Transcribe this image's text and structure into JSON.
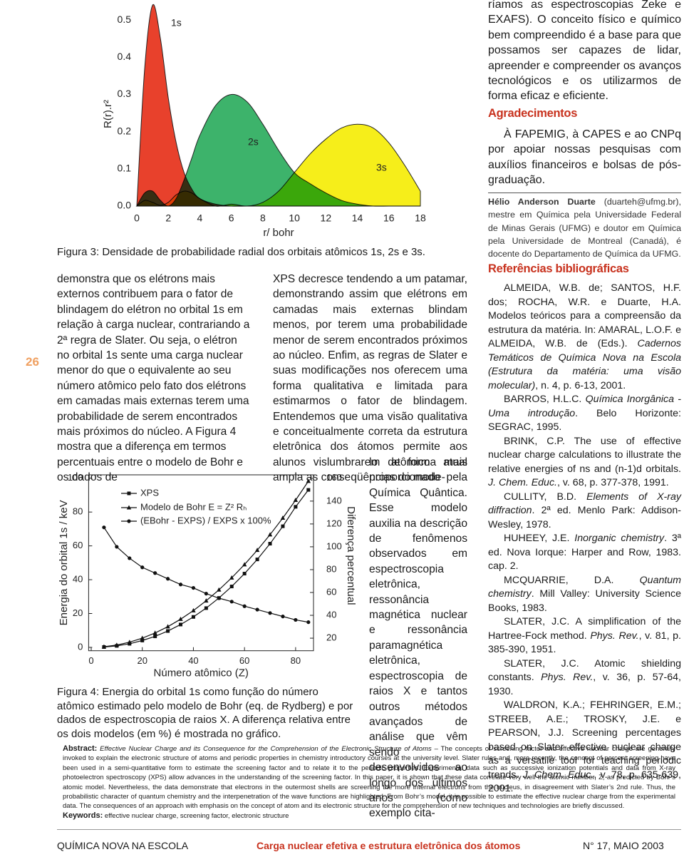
{
  "chart_data": [
    {
      "type": "area",
      "caption": "Figura 3: Densidade de probabilidade radial dos orbitais atômicos 1s, 2s e 3s.",
      "ylabel": "R(r).r²",
      "xlabel": "r/ bohr",
      "x": [
        0,
        0.5,
        1,
        1.5,
        2,
        2.5,
        3,
        3.5,
        4,
        5,
        6,
        7,
        8,
        9,
        10,
        11,
        12,
        13,
        14,
        15,
        16,
        17,
        18
      ],
      "series": [
        {
          "name": "1s",
          "color": "#e8412c",
          "values": [
            0,
            0.37,
            0.54,
            0.45,
            0.29,
            0.17,
            0.09,
            0.045,
            0.02,
            0.005,
            0,
            0,
            0,
            0,
            0,
            0,
            0,
            0,
            0,
            0,
            0,
            0,
            0
          ]
        },
        {
          "name": "2s",
          "color": "#3db36b",
          "values": [
            0,
            0.035,
            0.04,
            0.015,
            0,
            0.02,
            0.07,
            0.13,
            0.19,
            0.27,
            0.3,
            0.28,
            0.22,
            0.15,
            0.09,
            0.06,
            0.035,
            0.015,
            0.005,
            0,
            0,
            0,
            0
          ]
        },
        {
          "name": "3s",
          "color": "#f6ee1a",
          "values": [
            0,
            0.015,
            0.01,
            0.002,
            0.01,
            0.03,
            0.04,
            0.035,
            0.02,
            0,
            0.005,
            0,
            0.01,
            0.04,
            0.09,
            0.14,
            0.18,
            0.21,
            0.22,
            0.21,
            0.17,
            0.11,
            0.04
          ]
        }
      ],
      "xlim": [
        0,
        18
      ],
      "xticks": [
        0,
        2,
        4,
        6,
        8,
        10,
        12,
        14,
        16,
        18
      ],
      "ylim": [
        0,
        0.55
      ],
      "yticks": [
        {
          "value": 0,
          "label": "0.0"
        },
        0.1,
        0.2,
        0.3,
        0.4,
        0.5
      ]
    },
    {
      "type": "line",
      "caption": "Figura 4: Energia do orbital 1s como função do número atômico estimado pelo modelo de Bohr (eq. de Rydberg) e por dados de espectroscopia de raios X. A diferença relativa entre os dois modelos (em %) é mostrada no gráfico.",
      "ylabel": "Energia do orbital 1s / keV",
      "y2label": "Diferença percentual",
      "xlabel": "Número atômico (Z)",
      "x": [
        5,
        10,
        15,
        20,
        25,
        30,
        35,
        40,
        45,
        50,
        55,
        60,
        65,
        70,
        75,
        80,
        85
      ],
      "series": [
        {
          "name": "XPS",
          "color": "#111111",
          "marker": "square",
          "values": [
            0.19,
            0.87,
            2.1,
            4.04,
            6.5,
            9.66,
            13.5,
            18.0,
            23.2,
            29.2,
            36.0,
            43.6,
            52.0,
            61.3,
            71.6,
            83.1,
            93.1
          ]
        },
        {
          "name": "Modelo de Bohr E = Z² Rₕ",
          "color": "#111111",
          "marker": "triangle",
          "values": [
            0.34,
            1.36,
            3.06,
            5.44,
            8.5,
            12.24,
            16.66,
            21.76,
            27.54,
            34,
            41.14,
            48.96,
            57.46,
            66.64,
            76.5,
            87.04,
            98.26
          ]
        },
        {
          "name": "(EBohr - EXPS) / EXPS x 100%",
          "color": "#111111",
          "marker": "circle",
          "axis": "y2",
          "values": [
            117,
            100,
            90,
            82,
            77,
            72,
            67,
            64,
            59,
            55,
            52,
            48,
            45,
            42,
            39,
            36,
            34
          ]
        }
      ],
      "xlim": [
        -1,
        87
      ],
      "xticks": [
        0,
        20,
        40,
        60,
        80
      ],
      "ylim": [
        -2,
        102
      ],
      "yticks": [
        0,
        20,
        40,
        60,
        80,
        100
      ],
      "y2lim": [
        9,
        163
      ],
      "y2ticks": [
        20,
        40,
        60,
        80,
        100,
        120,
        140,
        160
      ]
    }
  ],
  "page_number": "26",
  "top_right": {
    "paragraph": "ríamos as espectroscopias Zeke e EXAFS). O conceito físico e químico bem compreendido é a base para que possamos ser capazes de lidar, apreender e compreender os avanços tecnológicos e os utilizarmos de forma eficaz e eficiente.",
    "acknowledgments_heading": "Agradecimentos",
    "acknowledgments": "À FAPEMIG, à CAPES e ao CNPq por apoiar nossas pesquisas com auxílios financeiros e bolsas de pós-graduação."
  },
  "author": {
    "name": "Hélio Anderson Duarte",
    "bio": "(duarteh@ufmg.br), mestre em Química pela Universidade Federal de Minas Gerais (UFMG) e doutor em Química pela Universidade de Montreal (Canadá), é docente do Departamento de Química da UFMG."
  },
  "references": {
    "heading": "Referências bibliográficas",
    "items": [
      [
        {
          "roman": "ALMEIDA, W.B. de; SANTOS, H.F. dos; ROCHA, W.R. e Duarte, H.A. Modelos teóricos para a compreensão da estrutura da matéria. In: AMARAL, L.O.F. e ALMEIDA, W.B. de (Eds.). "
        },
        {
          "italic": "Cadernos Temáticos de Química Nova na Escola (Estrutura da matéria: uma visão molecular)"
        },
        {
          "roman": ", n. 4, p. 6-13, 2001."
        }
      ],
      [
        {
          "roman": "BARROS, H.L.C. "
        },
        {
          "italic": "Química Inorgânica - Uma introdução"
        },
        {
          "roman": ". Belo Horizonte: SEGRAC, 1995."
        }
      ],
      [
        {
          "roman": "BRINK, C.P. The use of effective nuclear charge calculations to illustrate the relative energies of ns and (n-1)d orbitals. "
        },
        {
          "italic": "J. Chem. Educ."
        },
        {
          "roman": ", v. 68, p. 377-378, 1991."
        }
      ],
      [
        {
          "roman": "CULLITY, B.D. "
        },
        {
          "italic": "Elements of X-ray diffraction"
        },
        {
          "roman": ". 2ª ed. Menlo Park: Addison-Wesley, 1978."
        }
      ],
      [
        {
          "roman": "HUHEEY, J.E. "
        },
        {
          "italic": "Inorganic chemistry"
        },
        {
          "roman": ". 3ª ed. Nova Iorque: Harper and Row, 1983. cap. 2."
        }
      ],
      [
        {
          "roman": "MCQUARRIE, D.A. "
        },
        {
          "italic": "Quantum chemistry"
        },
        {
          "roman": ". Mill Valley: University Science Books, 1983."
        }
      ],
      [
        {
          "roman": "SLATER, J.C. A simplification of the Hartree-Fock method. "
        },
        {
          "italic": "Phys. Rev."
        },
        {
          "roman": ", v. 81, p. 385-390, 1951."
        }
      ],
      [
        {
          "roman": "SLATER, J.C. Atomic shielding constants. "
        },
        {
          "italic": "Phys. Rev."
        },
        {
          "roman": ", v. 36, p. 57-64, 1930."
        }
      ],
      [
        {
          "roman": "WALDRON, K.A.; FEHRINGER, E.M.; STREEB, A.E.; TROSKY, J.E. e PEARSON, J.J. Screening percentages based on Slater effective nuclear charge as a versatile tool for teaching periodic trends. "
        },
        {
          "italic": "J. Chem. Educ."
        },
        {
          "roman": ", v. 78, p. 635-639, 2001."
        }
      ]
    ]
  },
  "body": {
    "left_column": "demonstra que os elétrons mais externos contribuem para o fator de blindagem do elétron no orbital 1s em relação à carga nuclear, contrariando a 2ª regra de Slater. Ou seja, o elétron no orbital 1s sente uma carga nuclear menor do que o equivalente ao seu número atômico pelo fato dos elétrons em camadas mais externas terem uma probabilidade de serem encontrados mais próximos do núcleo. A Figura 4 mostra que a diferença em termos percentuais entre o modelo de Bohr e os dados de",
    "right_column_top": "XPS decresce tendendo a um patamar, demonstrando assim que elétrons em camadas mais externas blindam menos, por terem uma probabilidade menor de serem encontrados próximos ao núcleo. Enfim, as regras de Slater e suas modificações nos oferecem uma forma qualitativa e limitada para estimarmos o fator de blindagem. Entendemos que uma visão qualitativa e conceitualmente correta da estrutura eletrônica dos átomos permite aos alunos vislumbrarem de forma mais ampla as conseqüências do mode-",
    "right_column_wrap": "lo atômico atual proporcionado pela Química Quântica. Esse modelo auxilia na descrição de fenômenos observados em espectroscopia eletrônica, ressonância magnética nuclear e ressonância paramagnética eletrônica, espectroscopia de raios X e tantos outros métodos avançados de análise que vêm sendo desenvolvidos ao longo dos últimos anos (como exemplo cita-"
  },
  "abstract": {
    "label": "Abstract:",
    "title": "Effective Nuclear Charge and its Consequence for the Comprehension of the Electronic Structure of Atoms",
    "text": " – The concepts of screening factor and effective nuclear charge are generally invoked to explain the electronic structure of atoms and periodic properties in chemistry introductory courses at the university level. Slater rules and, more recently, the concept of percent screening have been used in a semi-quantitative form to estimate the screening factor and to relate it to the periodic properties. Experimental data such as successive ionization potentials and data from X-ray photoelectron spectroscopy (XPS) allow advances in the understanding of the screening factor. In this paper, it is shown that these data correlate very well the atomic number, Z, as predicted by Bohr’s atomic model. Nevertheless, the data demonstrate that electrons in the outermost shells are screening the more internal electrons from the nucleus, in disagreement with Slater’s 2nd rule. Thus, the probabilistic character of quantum chemistry and the interpenetration of the wave functions are highlighted. From Bohr’s model, it is possible to estimate the effective nuclear charge from the experimental data. The consequences of an approach with emphasis on the concept of atom and its electronic structure for the comprehension of new techniques and technologies are briefly discussed.",
    "keywords_label": "Keywords:",
    "keywords": "effective nuclear charge, screening factor, electronic structure"
  },
  "footer": {
    "journal": "QUÍMICA NOVA NA ESCOLA",
    "article": "Carga nuclear efetiva e estrutura eletrônica dos átomos",
    "issue": "N° 17, MAIO 2003"
  }
}
